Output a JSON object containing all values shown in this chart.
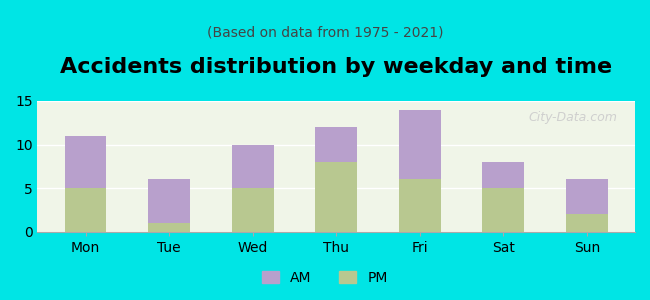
{
  "title": "Accidents distribution by weekday and time",
  "subtitle": "(Based on data from 1975 - 2021)",
  "categories": [
    "Mon",
    "Tue",
    "Wed",
    "Thu",
    "Fri",
    "Sat",
    "Sun"
  ],
  "pm_values": [
    5,
    1,
    5,
    8,
    6,
    5,
    2
  ],
  "am_values": [
    6,
    5,
    5,
    4,
    8,
    3,
    4
  ],
  "am_color": "#b8a0cc",
  "pm_color": "#b8c890",
  "background_color": "#00e5e5",
  "plot_bg_color": "#f0f5e8",
  "ylim": [
    0,
    15
  ],
  "yticks": [
    0,
    5,
    10,
    15
  ],
  "bar_width": 0.5,
  "title_fontsize": 16,
  "subtitle_fontsize": 10,
  "tick_fontsize": 10,
  "legend_fontsize": 10,
  "watermark_text": "City-Data.com"
}
